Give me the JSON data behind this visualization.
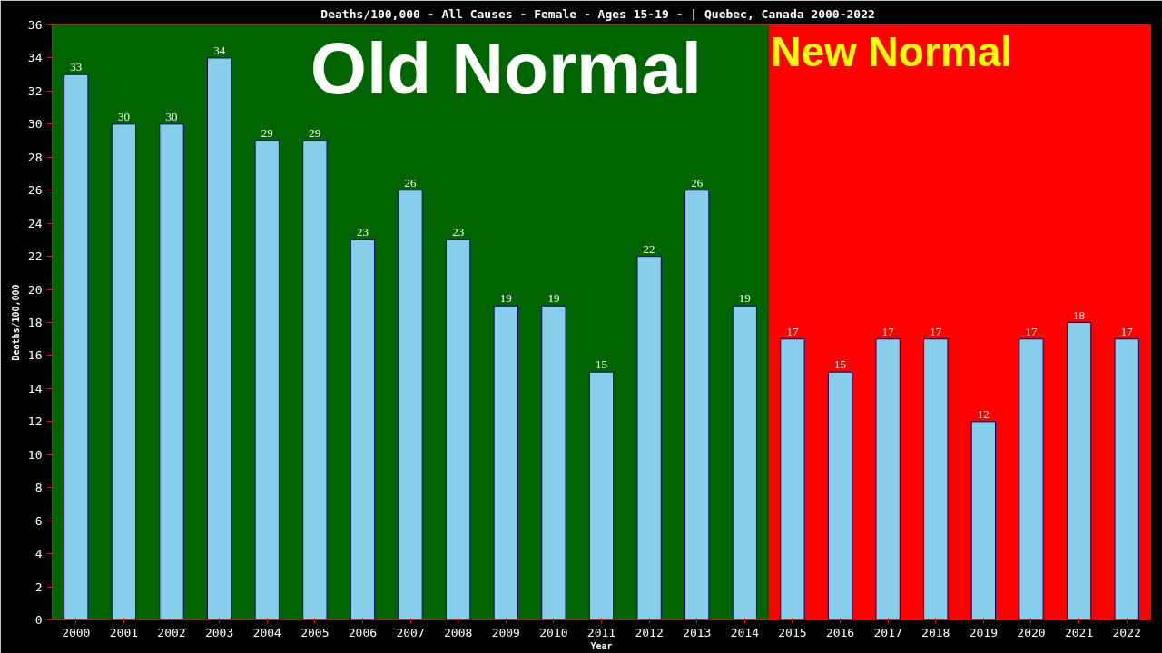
{
  "chart_data": {
    "type": "bar",
    "title": "Deaths/100,000 - All Causes - Female - Ages 15-19 -  | Quebec, Canada 2000-2022",
    "xlabel": "Year",
    "ylabel": "Deaths/100,000",
    "categories": [
      "2000",
      "2001",
      "2002",
      "2003",
      "2004",
      "2005",
      "2006",
      "2007",
      "2008",
      "2009",
      "2010",
      "2011",
      "2012",
      "2013",
      "2014",
      "2015",
      "2016",
      "2017",
      "2018",
      "2019",
      "2020",
      "2021",
      "2022"
    ],
    "values": [
      33,
      30,
      30,
      34,
      29,
      29,
      23,
      26,
      23,
      19,
      19,
      15,
      22,
      26,
      19,
      17,
      15,
      17,
      17,
      12,
      17,
      18,
      17
    ],
    "color": "#87ceeb",
    "data_labels": true,
    "ylim": [
      0,
      36
    ],
    "yticks": [
      0,
      2,
      4,
      6,
      8,
      10,
      12,
      14,
      16,
      18,
      20,
      22,
      24,
      26,
      28,
      30,
      32,
      34,
      36
    ],
    "grid": false,
    "bands": [
      {
        "axis": "x",
        "from": "2000",
        "to": "2014",
        "label": "Old Normal",
        "color": "#006400"
      },
      {
        "axis": "x",
        "from": "2015",
        "to": "2022",
        "label": "New Normal",
        "color": "#ff0000"
      }
    ]
  }
}
